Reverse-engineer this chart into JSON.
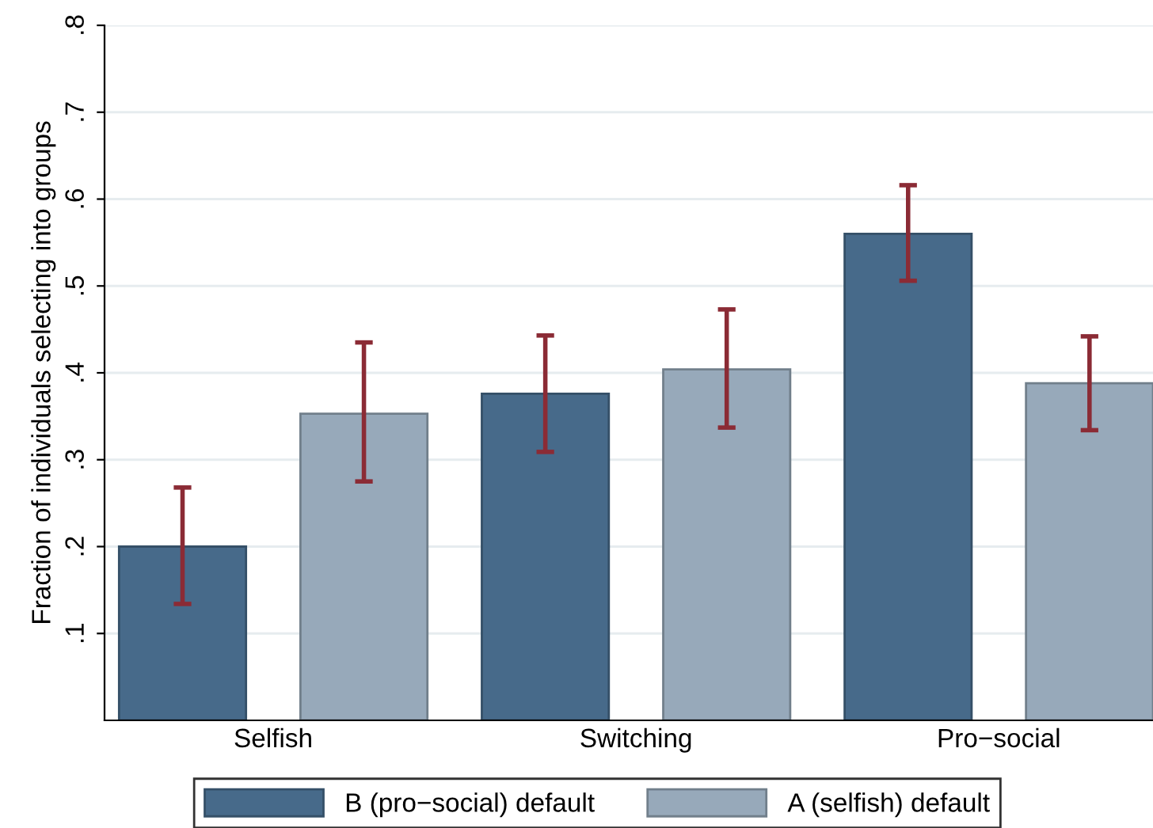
{
  "chart_data": {
    "type": "bar",
    "ylabel": "Fraction of individuals selecting into groups",
    "categories": [
      "Selfish",
      "Switching",
      "Pro−social"
    ],
    "series": [
      {
        "name": "B (pro−social) default",
        "color": "#476a8a",
        "values": [
          0.2,
          0.376,
          0.56
        ],
        "errors": [
          [
            0.134,
            0.268
          ],
          [
            0.309,
            0.443
          ],
          [
            0.506,
            0.616
          ]
        ]
      },
      {
        "name": "A (selfish) default",
        "color": "#97a9ba",
        "values": [
          0.353,
          0.404,
          0.388
        ],
        "errors": [
          [
            0.275,
            0.435
          ],
          [
            0.337,
            0.473
          ],
          [
            0.334,
            0.442
          ]
        ]
      }
    ],
    "ylim": [
      0,
      0.8
    ],
    "yticks": [
      {
        "value": 0.1,
        "label": ".1"
      },
      {
        "value": 0.2,
        "label": ".2"
      },
      {
        "value": 0.3,
        "label": ".3"
      },
      {
        "value": 0.4,
        "label": ".4"
      },
      {
        "value": 0.5,
        "label": ".5"
      },
      {
        "value": 0.6,
        "label": ".6"
      },
      {
        "value": 0.7,
        "label": ".7"
      },
      {
        "value": 0.8,
        "label": ".8"
      }
    ],
    "grid": "y",
    "legend": "bottom"
  }
}
